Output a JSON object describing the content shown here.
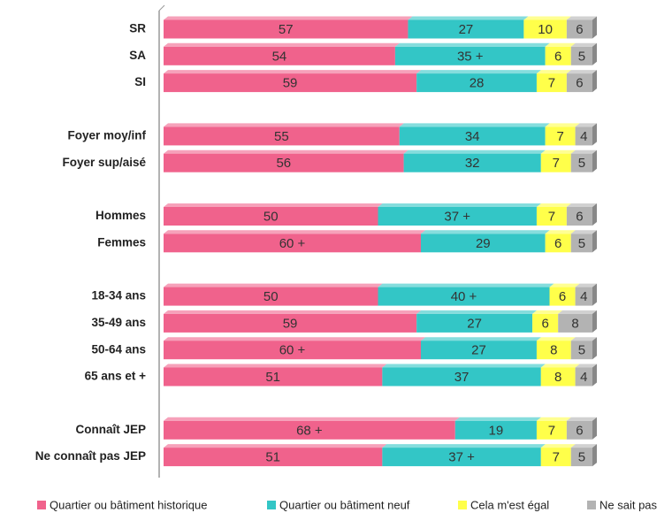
{
  "chart_data": {
    "type": "stacked-bar-horizontal",
    "categories": [
      "SR",
      "SA",
      "SI",
      "Foyer moy/inf",
      "Foyer sup/aisé",
      "Hommes",
      "Femmes",
      "18-34 ans",
      "35-49 ans",
      "50-64 ans",
      "65 ans et +",
      "Connaît JEP",
      "Ne connaît pas JEP"
    ],
    "series": [
      {
        "name": "Quartier ou bâtiment historique",
        "color": "#f0628c",
        "values": [
          57,
          54,
          59,
          55,
          56,
          50,
          60,
          50,
          59,
          60,
          51,
          68,
          51
        ],
        "value_labels": [
          "57",
          "54",
          "59",
          "55",
          "56",
          "50",
          "60 +",
          "50",
          "59",
          "60 +",
          "51",
          "68 +",
          "51"
        ]
      },
      {
        "name": "Quartier ou bâtiment neuf",
        "color": "#33c6c6",
        "values": [
          27,
          35,
          28,
          34,
          32,
          37,
          29,
          40,
          27,
          27,
          37,
          19,
          37
        ],
        "value_labels": [
          "27",
          "35 +",
          "28",
          "34",
          "32",
          "37 +",
          "29",
          "40 +",
          "27",
          "27",
          "37",
          "19",
          "37 +"
        ]
      },
      {
        "name": "Cela m'est égal",
        "color": "#ffff4a",
        "values": [
          10,
          6,
          7,
          7,
          7,
          7,
          6,
          6,
          6,
          8,
          8,
          7,
          7
        ]
      },
      {
        "name": "Ne sait pas",
        "color": "#b3b3b3",
        "values": [
          6,
          5,
          6,
          4,
          5,
          6,
          5,
          4,
          8,
          5,
          4,
          6,
          5
        ]
      }
    ],
    "xlim": [
      0,
      100
    ]
  }
}
